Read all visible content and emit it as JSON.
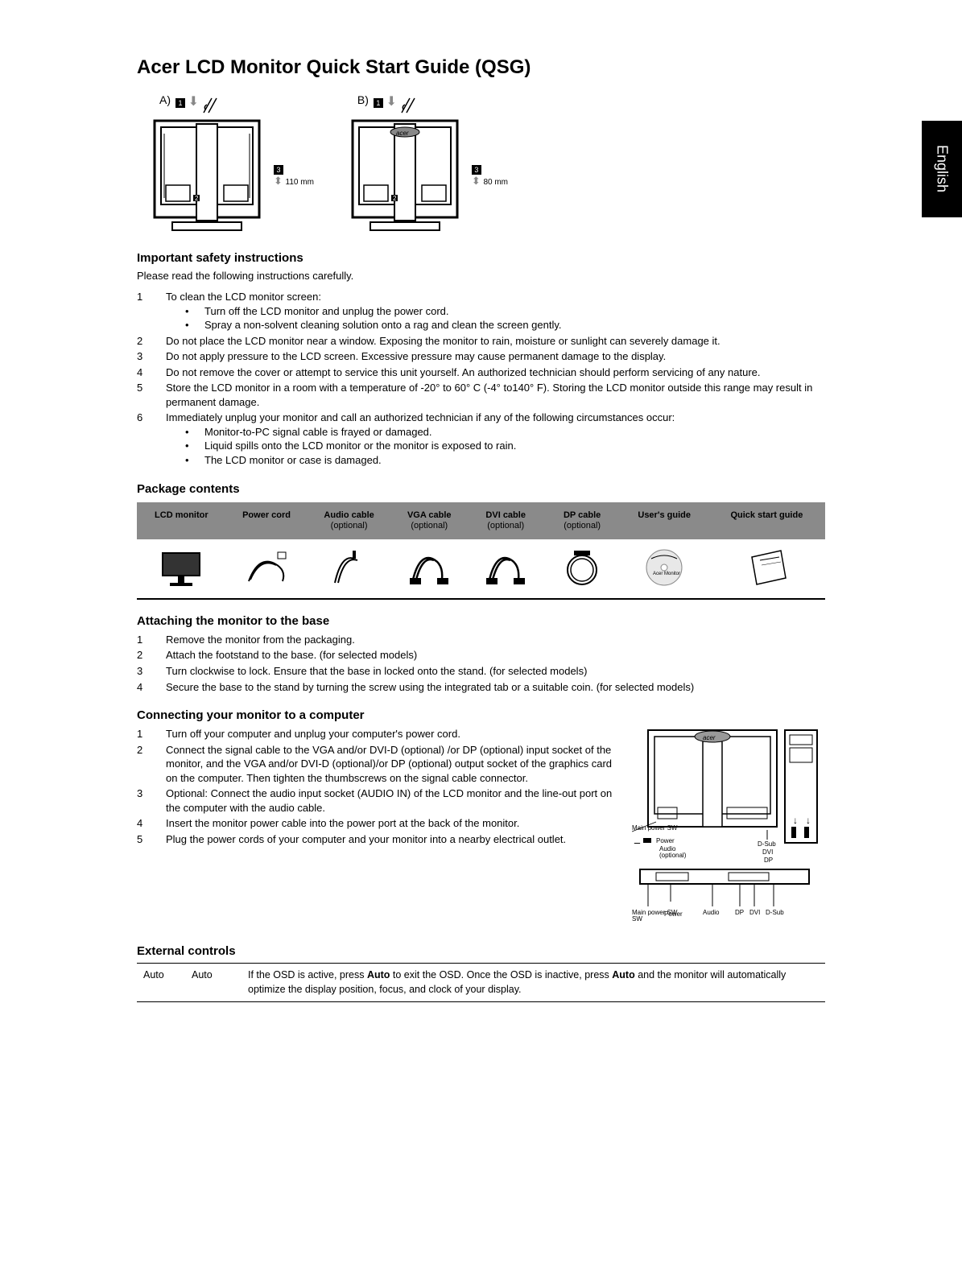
{
  "language_tab": "English",
  "title": "Acer LCD Monitor Quick Start Guide (QSG)",
  "diagrams": {
    "a": {
      "label": "A)",
      "dim": "110 mm"
    },
    "b": {
      "label": "B)",
      "dim": "80 mm"
    },
    "callouts": [
      "1",
      "2",
      "3"
    ]
  },
  "safety": {
    "heading": "Important safety instructions",
    "intro": "Please read the following instructions carefully.",
    "items": [
      {
        "n": "1",
        "text": "To clean the LCD monitor screen:",
        "bullets": [
          "Turn off the LCD monitor and unplug the power cord.",
          "Spray a non-solvent cleaning solution onto a rag and clean the screen gently."
        ]
      },
      {
        "n": "2",
        "text": "Do not place the LCD monitor near a window. Exposing the monitor to rain, moisture or sunlight can severely damage it."
      },
      {
        "n": "3",
        "text": "Do not apply pressure to the LCD screen. Excessive pressure may cause permanent damage to the display."
      },
      {
        "n": "4",
        "text": "Do not remove the cover or attempt to service this unit yourself. An authorized technician should perform servicing of any nature."
      },
      {
        "n": "5",
        "text": "Store the LCD monitor in a room with a temperature of -20° to 60° C (-4° to140° F). Storing the LCD monitor outside this range may result in permanent damage."
      },
      {
        "n": "6",
        "text": "Immediately unplug your monitor and call an authorized technician if any of the following circumstances occur:",
        "bullets": [
          "Monitor-to-PC signal cable is frayed or damaged.",
          "Liquid spills onto the LCD monitor or the monitor is exposed to rain.",
          "The LCD monitor or case is damaged."
        ]
      }
    ]
  },
  "package": {
    "heading": "Package contents",
    "headers": [
      {
        "main": "LCD monitor",
        "sub": ""
      },
      {
        "main": "Power cord",
        "sub": ""
      },
      {
        "main": "Audio cable",
        "sub": "(optional)"
      },
      {
        "main": "VGA cable",
        "sub": "(optional)"
      },
      {
        "main": "DVI cable",
        "sub": "(optional)"
      },
      {
        "main": "DP cable",
        "sub": "(optional)"
      },
      {
        "main": "User's guide",
        "sub": ""
      },
      {
        "main": "Quick start guide",
        "sub": ""
      }
    ]
  },
  "attaching": {
    "heading": "Attaching the monitor to the base",
    "items": [
      {
        "n": "1",
        "text": "Remove the monitor from the packaging."
      },
      {
        "n": "2",
        "text": "Attach the footstand to the base. (for selected models)"
      },
      {
        "n": "3",
        "text": "Turn clockwise to lock. Ensure that the base in locked onto the stand. (for selected models)"
      },
      {
        "n": "4",
        "text": "Secure the base to the stand by turning the screw using the integrated tab or a suitable coin. (for selected models)"
      }
    ]
  },
  "connecting": {
    "heading": "Connecting your monitor to a computer",
    "items": [
      {
        "n": "1",
        "text": "Turn off your computer and unplug your computer's power cord."
      },
      {
        "n": "2",
        "text": "Connect the signal cable to the VGA and/or DVI-D (optional) /or DP (optional) input socket of the monitor, and the VGA and/or DVI-D (optional)/or DP (optional) output socket of the graphics card on the computer. Then tighten the thumbscrews on the signal cable connector."
      },
      {
        "n": "3",
        "text": "Optional: Connect the audio input socket (AUDIO IN) of the LCD monitor and the line-out port on the computer with the audio cable."
      },
      {
        "n": "4",
        "text": "Insert the monitor power cable into the power port at the back of the monitor."
      },
      {
        "n": "5",
        "text": "Plug the power cords of your computer and your monitor into a nearby electrical outlet."
      }
    ],
    "diagram_labels": {
      "main_power_sw": "Main power SW",
      "power": "Power",
      "audio": "Audio",
      "audio_opt": "(optional)",
      "dsub": "D-Sub",
      "dvi": "DVI",
      "dp": "DP",
      "brand": "acer"
    }
  },
  "external": {
    "heading": "External controls",
    "row": {
      "col1": "Auto",
      "col2": "Auto",
      "desc_pre": "If the OSD is active, press ",
      "desc_bold1": "Auto",
      "desc_mid": " to exit the OSD. Once the OSD is inactive, press ",
      "desc_bold2": "Auto",
      "desc_post": " and the monitor will automatically optimize the display position, focus, and clock of your display."
    }
  },
  "colors": {
    "text": "#000000",
    "bg": "#ffffff",
    "table_head": "#8a8a8a"
  }
}
